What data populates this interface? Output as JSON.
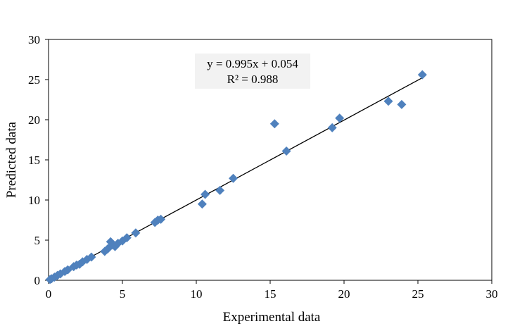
{
  "chart_data": {
    "type": "scatter",
    "xlabel": "Experimental data",
    "ylabel": "Predicted data",
    "xlim": [
      0,
      30
    ],
    "ylim": [
      0,
      30
    ],
    "xticks": [
      "0",
      "5",
      "10",
      "15",
      "20",
      "25",
      "30"
    ],
    "yticks": [
      "0",
      "5",
      "10",
      "15",
      "20",
      "25",
      "30"
    ],
    "grid": false,
    "legend": "none",
    "marker": "diamond",
    "marker_color": "#4F81BD",
    "trendline": {
      "slope": 0.995,
      "intercept": 0.054,
      "x_range": [
        0,
        25.3
      ],
      "equation_label": "y = 0.995x + 0.054",
      "r2_label": "R² = 0.988",
      "color": "#000000"
    },
    "points": [
      {
        "x": 0.1,
        "y": 0.1
      },
      {
        "x": 0.2,
        "y": 0.2
      },
      {
        "x": 0.4,
        "y": 0.4
      },
      {
        "x": 0.6,
        "y": 0.6
      },
      {
        "x": 0.8,
        "y": 0.8
      },
      {
        "x": 1.1,
        "y": 1.1
      },
      {
        "x": 1.3,
        "y": 1.3
      },
      {
        "x": 1.7,
        "y": 1.7
      },
      {
        "x": 1.9,
        "y": 1.9
      },
      {
        "x": 2.1,
        "y": 2.0
      },
      {
        "x": 2.3,
        "y": 2.3
      },
      {
        "x": 2.6,
        "y": 2.6
      },
      {
        "x": 2.9,
        "y": 2.9
      },
      {
        "x": 3.8,
        "y": 3.6
      },
      {
        "x": 4.0,
        "y": 3.9
      },
      {
        "x": 4.2,
        "y": 4.8
      },
      {
        "x": 4.3,
        "y": 4.4
      },
      {
        "x": 4.5,
        "y": 4.2
      },
      {
        "x": 4.7,
        "y": 4.6
      },
      {
        "x": 5.0,
        "y": 4.9
      },
      {
        "x": 5.3,
        "y": 5.3
      },
      {
        "x": 5.9,
        "y": 5.9
      },
      {
        "x": 7.2,
        "y": 7.2
      },
      {
        "x": 7.4,
        "y": 7.5
      },
      {
        "x": 7.6,
        "y": 7.6
      },
      {
        "x": 10.4,
        "y": 9.5
      },
      {
        "x": 10.6,
        "y": 10.7
      },
      {
        "x": 11.6,
        "y": 11.2
      },
      {
        "x": 12.5,
        "y": 12.7
      },
      {
        "x": 15.3,
        "y": 19.5
      },
      {
        "x": 16.1,
        "y": 16.1
      },
      {
        "x": 19.2,
        "y": 19.0
      },
      {
        "x": 19.7,
        "y": 20.2
      },
      {
        "x": 23.0,
        "y": 22.3
      },
      {
        "x": 23.9,
        "y": 21.9
      },
      {
        "x": 25.3,
        "y": 25.6
      }
    ]
  }
}
